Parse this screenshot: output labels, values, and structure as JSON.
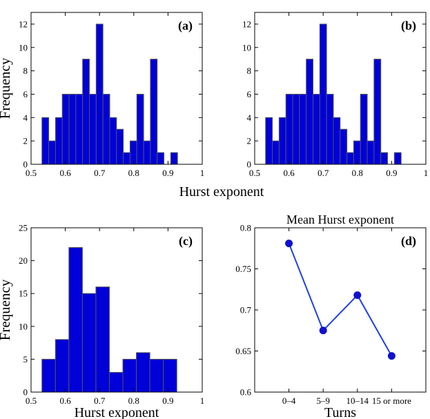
{
  "figure": {
    "shared_xlabel": "Hurst exponent",
    "colors": {
      "bar_fill": "#0000d8",
      "bar_stroke": "#555555",
      "line": "#1f3fe6",
      "marker": "#1010d0"
    }
  },
  "chart_data": [
    {
      "type": "bar",
      "panel_label": "(a)",
      "ylabel": "Frequency",
      "xlabel": "",
      "xlim": [
        0.5,
        1.0
      ],
      "ylim": [
        0,
        13
      ],
      "xticks": [
        "0.5",
        "0.6",
        "0.7",
        "0.8",
        "0.9",
        "1"
      ],
      "xtick_values": [
        0.5,
        0.6,
        0.7,
        0.8,
        0.9,
        1.0
      ],
      "yticks": [
        "0",
        "2",
        "4",
        "6",
        "8",
        "10",
        "12"
      ],
      "ytick_values": [
        0,
        2,
        4,
        6,
        8,
        10,
        12
      ],
      "bin_start": 0.5318,
      "bin_width": 0.0198,
      "values": [
        4,
        2,
        4,
        6,
        6,
        6,
        9,
        6,
        12,
        6,
        4,
        3,
        1,
        2,
        6,
        2,
        9,
        1,
        0,
        1
      ]
    },
    {
      "type": "bar",
      "panel_label": "(b)",
      "ylabel": "",
      "xlabel": "",
      "xlim": [
        0.5,
        1.0
      ],
      "ylim": [
        0,
        13
      ],
      "xticks": [
        "0.5",
        "0.6",
        "0.7",
        "0.8",
        "0.9",
        "1"
      ],
      "xtick_values": [
        0.5,
        0.6,
        0.7,
        0.8,
        0.9,
        1.0
      ],
      "yticks": [
        "0",
        "2",
        "4",
        "6",
        "8",
        "10",
        "12"
      ],
      "ytick_values": [
        0,
        2,
        4,
        6,
        8,
        10,
        12
      ],
      "bin_start": 0.5318,
      "bin_width": 0.0198,
      "values": [
        4,
        2,
        4,
        6,
        6,
        6,
        9,
        6,
        12,
        6,
        4,
        3,
        1,
        2,
        6,
        2,
        9,
        1,
        0,
        1
      ]
    },
    {
      "type": "bar",
      "panel_label": "(c)",
      "ylabel": "Frequency",
      "xlabel": "Hurst exponent",
      "xlim": [
        0.5,
        1.0
      ],
      "ylim": [
        0,
        25
      ],
      "xticks": [
        "0.5",
        "0.6",
        "0.7",
        "0.8",
        "0.9",
        "1"
      ],
      "xtick_values": [
        0.5,
        0.6,
        0.7,
        0.8,
        0.9,
        1.0
      ],
      "yticks": [
        "0",
        "5",
        "10",
        "15",
        "20",
        "25"
      ],
      "ytick_values": [
        0,
        5,
        10,
        15,
        20,
        25
      ],
      "bin_start": 0.5318,
      "bin_width": 0.0394,
      "values": [
        5,
        8,
        22,
        15,
        16,
        3,
        5,
        6,
        5,
        5
      ]
    },
    {
      "type": "line",
      "panel_label": "(d)",
      "title": "Mean Hurst exponent",
      "ylabel": "",
      "xlabel": "Turns",
      "categories": [
        "0–4",
        "5–9",
        "10–14",
        "15 or more"
      ],
      "values": [
        0.781,
        0.675,
        0.718,
        0.644
      ],
      "xlim": [
        0,
        5
      ],
      "ylim": [
        0.6,
        0.8
      ],
      "yticks": [
        "0.6",
        "0.65",
        "0.7",
        "0.75",
        "0.8"
      ],
      "ytick_values": [
        0.6,
        0.65,
        0.7,
        0.75,
        0.8
      ]
    }
  ]
}
